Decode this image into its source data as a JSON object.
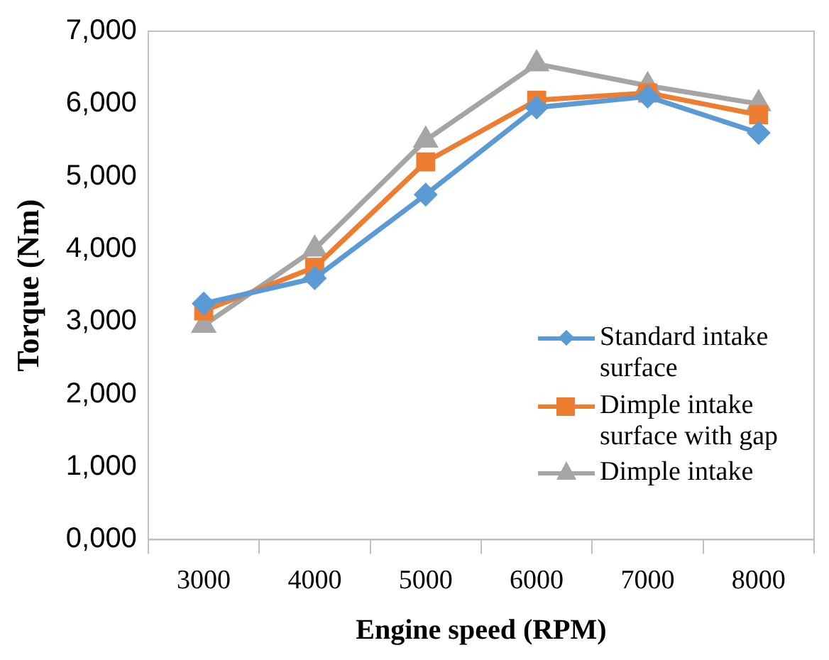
{
  "chart_data": {
    "type": "line",
    "xlabel": "Engine speed (RPM)",
    "ylabel": "Torque (Nm)",
    "categories": [
      "3000",
      "4000",
      "5000",
      "6000",
      "7000",
      "8000"
    ],
    "ylim": [
      0,
      7000
    ],
    "yticks": [
      {
        "value": 0,
        "label": "0,000"
      },
      {
        "value": 1000,
        "label": "1,000"
      },
      {
        "value": 2000,
        "label": "2,000"
      },
      {
        "value": 3000,
        "label": "3,000"
      },
      {
        "value": 4000,
        "label": "4,000"
      },
      {
        "value": 5000,
        "label": "5,000"
      },
      {
        "value": 6000,
        "label": "6,000"
      },
      {
        "value": 7000,
        "label": "7,000"
      }
    ],
    "grid": false,
    "legend": "bottom right",
    "line_style": "solid",
    "series": [
      {
        "name": "Standard intake surface",
        "color": "#5b9bd5",
        "marker": "diamond",
        "values": [
          3250,
          3600,
          4750,
          5950,
          6100,
          5600
        ]
      },
      {
        "name": "Dimple intake surface with gap",
        "color": "#ed7d31",
        "marker": "square",
        "values": [
          3150,
          3750,
          5200,
          6050,
          6150,
          5850
        ]
      },
      {
        "name": "Dimple intake",
        "color": "#a5a5a5",
        "marker": "triangle",
        "values": [
          2950,
          4000,
          5500,
          6550,
          6250,
          6000
        ]
      }
    ]
  }
}
